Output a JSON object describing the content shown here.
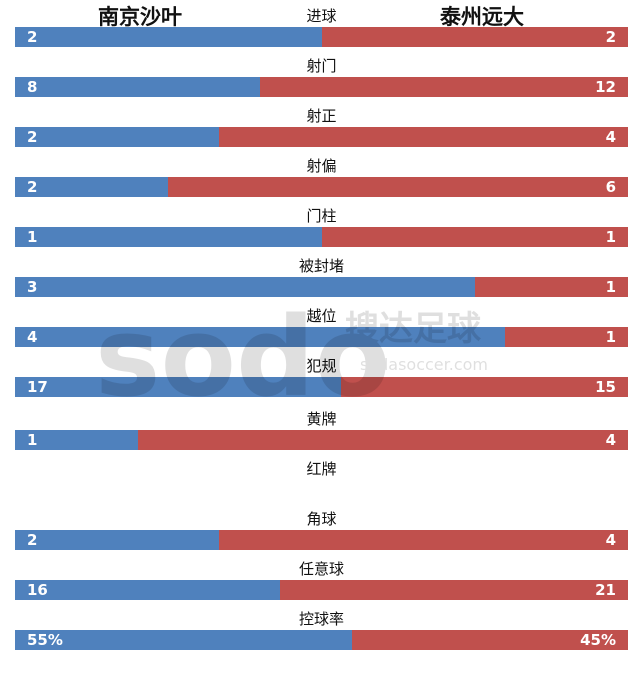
{
  "header": {
    "home_team": "南京沙叶",
    "away_team": "泰州远大"
  },
  "watermark": {
    "brand": "搜达足球",
    "url": "sodasoccer.com",
    "logo_text": "sodo"
  },
  "colors": {
    "home": "#4f81bd",
    "away": "#c0504d"
  },
  "chart_data": {
    "type": "bar",
    "title": "",
    "orientation": "horizontal-stacked-share",
    "categories": [
      "进球",
      "射门",
      "射正",
      "射偏",
      "门柱",
      "被封堵",
      "越位",
      "犯规",
      "黄牌",
      "红牌",
      "角球",
      "任意球",
      "控球率"
    ],
    "series": [
      {
        "name": "南京沙叶",
        "values": [
          2,
          8,
          2,
          2,
          1,
          3,
          4,
          17,
          1,
          null,
          2,
          16,
          55
        ]
      },
      {
        "name": "泰州远大",
        "values": [
          2,
          12,
          4,
          6,
          1,
          1,
          1,
          15,
          4,
          null,
          4,
          21,
          45
        ]
      }
    ],
    "display": {
      "home": [
        "2",
        "8",
        "2",
        "2",
        "1",
        "3",
        "4",
        "17",
        "1",
        "",
        "2",
        "16",
        "55%"
      ],
      "away": [
        "2",
        "12",
        "4",
        "6",
        "1",
        "1",
        "1",
        "15",
        "4",
        "",
        "4",
        "21",
        "45%"
      ]
    },
    "xlabel": "",
    "ylabel": ""
  }
}
